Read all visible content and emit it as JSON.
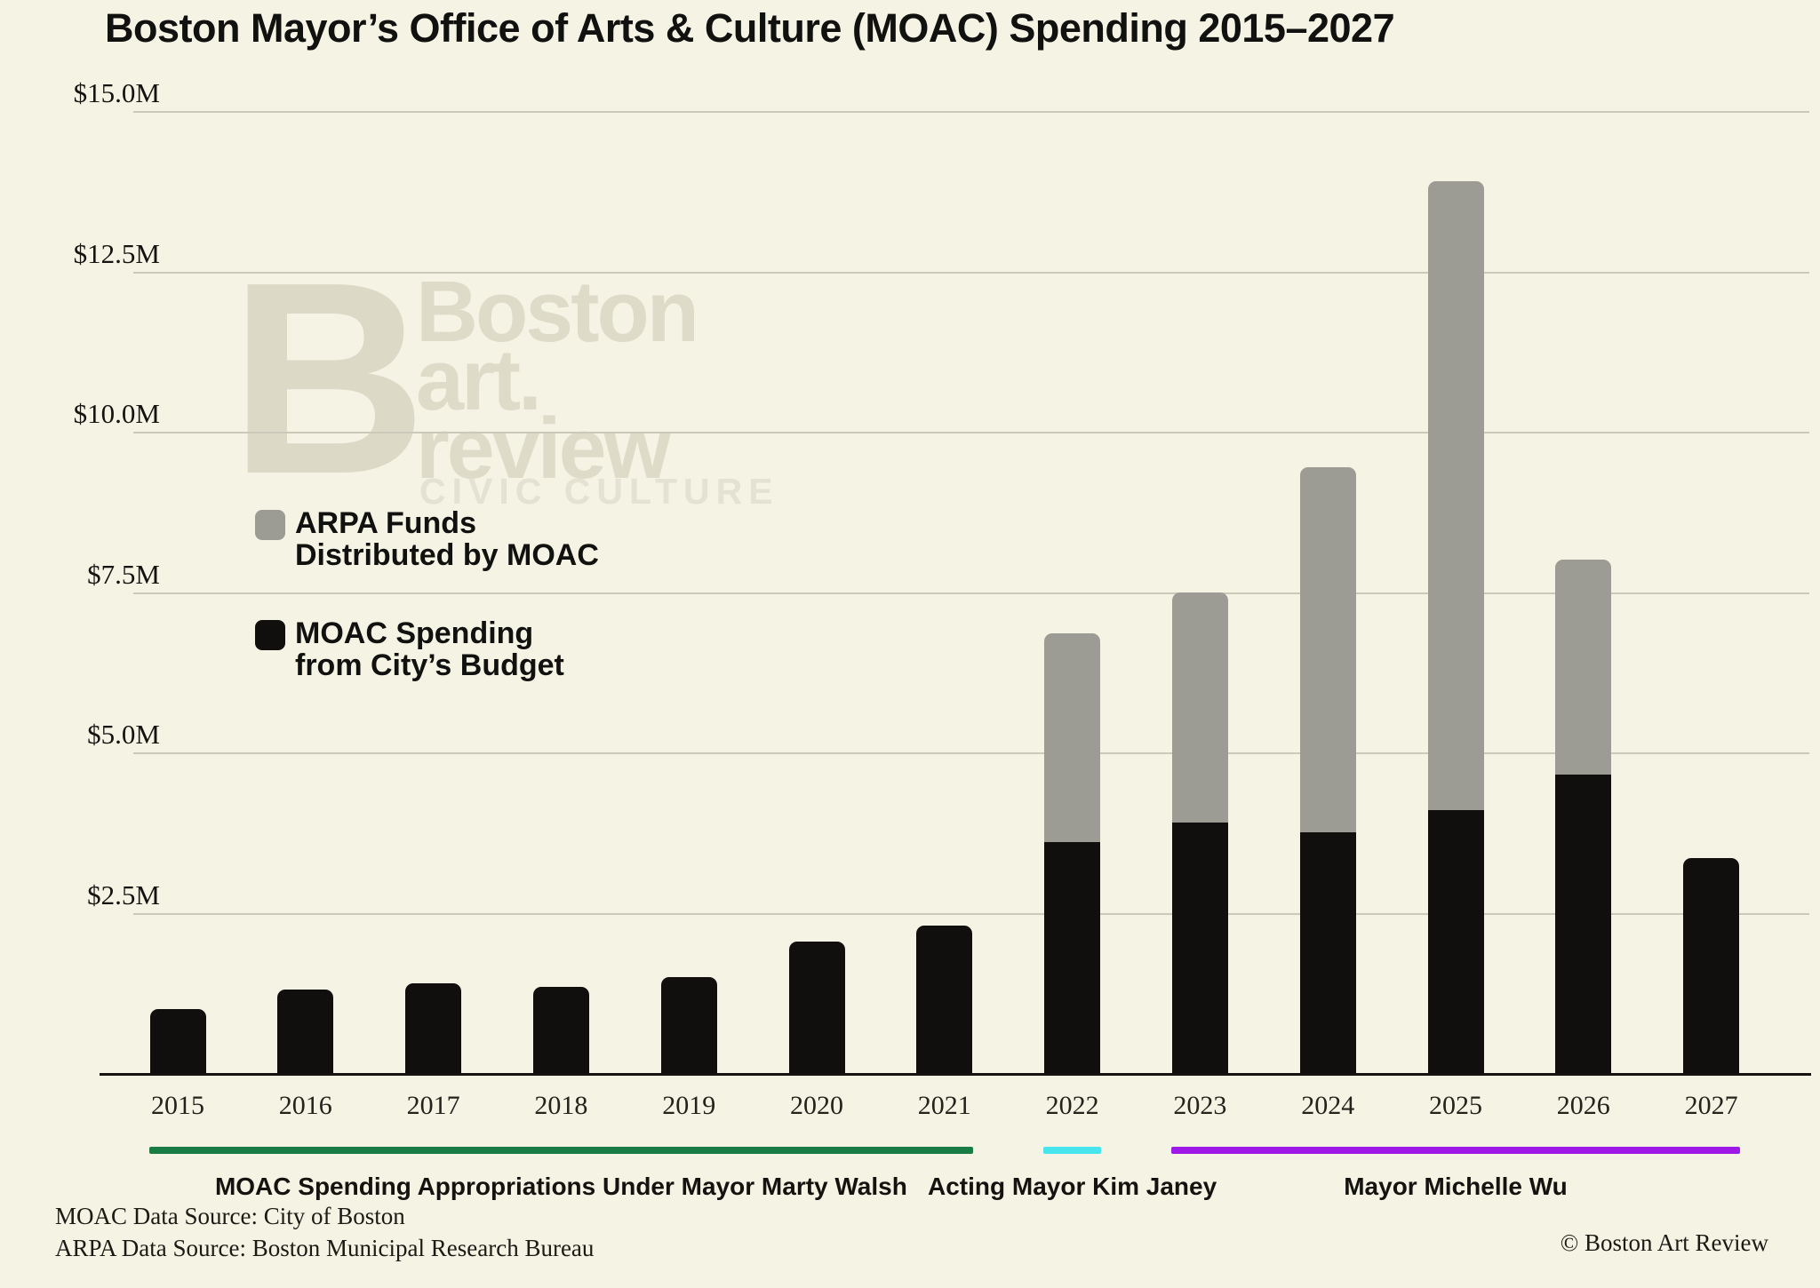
{
  "title": "Boston Mayor’s Office of Arts & Culture (MOAC) Spending 2015–2027",
  "watermark": {
    "logo_letter": "B",
    "line1": "Boston",
    "line2": "art.",
    "line3": "review",
    "tagline": "CIVIC CULTURE"
  },
  "legend": {
    "arpa": {
      "line1": "ARPA Funds",
      "line2": "Distributed by MOAC",
      "color": "#9c9b94"
    },
    "moac": {
      "line1": "MOAC Spending",
      "line2": "from City’s Budget",
      "color": "#100f0d"
    }
  },
  "chart_data": {
    "type": "bar",
    "stacked": true,
    "categories": [
      "2015",
      "2016",
      "2017",
      "2018",
      "2019",
      "2020",
      "2021",
      "2022",
      "2023",
      "2024",
      "2025",
      "2026",
      "2027"
    ],
    "series": [
      {
        "name": "MOAC Spending from City’s Budget",
        "color": "#100f0d",
        "values": [
          1.0,
          1.3,
          1.4,
          1.35,
          1.5,
          2.05,
          2.3,
          3.6,
          3.9,
          3.75,
          4.1,
          4.65,
          3.35
        ]
      },
      {
        "name": "ARPA Funds Distributed by MOAC",
        "color": "#9c9b94",
        "values": [
          0,
          0,
          0,
          0,
          0,
          0,
          0,
          3.25,
          3.6,
          5.7,
          9.8,
          3.35,
          0
        ]
      }
    ],
    "yticks": [
      {
        "value": 15.0,
        "label": "$15.0M"
      },
      {
        "value": 12.5,
        "label": "$12.5M"
      },
      {
        "value": 10.0,
        "label": "$10.0M"
      },
      {
        "value": 7.5,
        "label": "$7.5M"
      },
      {
        "value": 5.0,
        "label": "$5.0M"
      },
      {
        "value": 2.5,
        "label": "$2.5M"
      }
    ],
    "ylim": [
      0,
      15.5
    ],
    "unit": "millions USD",
    "grid": true,
    "legend_position": "middle-left",
    "annotations": [
      {
        "label": "MOAC Spending Appropriations Under Mayor Marty Walsh",
        "color": "#1a7c45",
        "start_year": "2015",
        "end_year": "2021"
      },
      {
        "label": "Acting Mayor Kim Janey",
        "color": "#47e6ee",
        "start_year": "2022",
        "end_year": "2022"
      },
      {
        "label": "Mayor Michelle Wu",
        "color": "#9e19e8",
        "start_year": "2023",
        "end_year": "2027"
      }
    ]
  },
  "footer": {
    "source_line1": "MOAC Data Source: City of Boston",
    "source_line2": "ARPA Data Source: Boston Municipal Research Bureau",
    "copyright": "© Boston Art Review"
  }
}
